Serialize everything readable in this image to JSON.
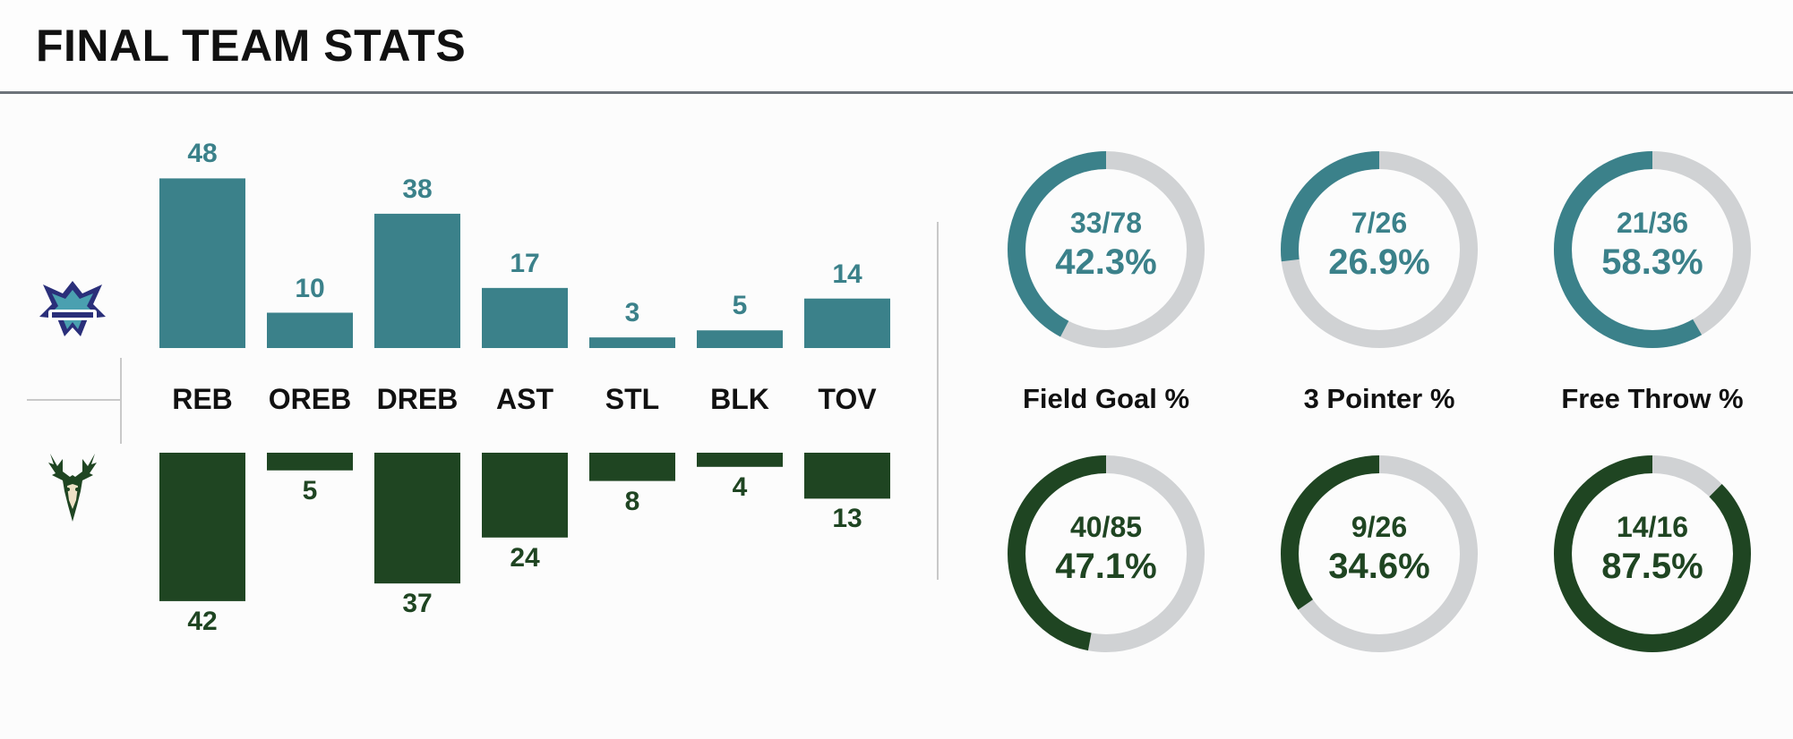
{
  "header": {
    "title": "FINAL TEAM STATS"
  },
  "teams": {
    "top": {
      "logo_icon": "charlotte-hornets-logo-icon",
      "color": "#3b818a"
    },
    "bottom": {
      "logo_icon": "milwaukee-bucks-logo-icon",
      "color": "#1f4522"
    }
  },
  "chart_data": [
    {
      "type": "bar",
      "categories": [
        "REB",
        "OREB",
        "DREB",
        "AST",
        "STL",
        "BLK",
        "TOV"
      ],
      "series": [
        {
          "values": [
            48,
            10,
            38,
            17,
            3,
            5,
            14
          ],
          "color": "#3b818a"
        },
        {
          "values": [
            42,
            5,
            37,
            24,
            8,
            4,
            13
          ],
          "color": "#1f4522"
        }
      ],
      "layout": "mirrored-vertical"
    },
    {
      "type": "pie",
      "charts": [
        {
          "label": "Field Goal %",
          "top": {
            "made": 33,
            "att": 78,
            "frac": "33/78",
            "pct": "42.3%"
          },
          "bottom": {
            "made": 40,
            "att": 85,
            "frac": "40/85",
            "pct": "47.1%"
          }
        },
        {
          "label": "3 Pointer %",
          "top": {
            "made": 7,
            "att": 26,
            "frac": "7/26",
            "pct": "26.9%"
          },
          "bottom": {
            "made": 9,
            "att": 26,
            "frac": "9/26",
            "pct": "34.6%"
          }
        },
        {
          "label": "Free Throw %",
          "top": {
            "made": 21,
            "att": 36,
            "frac": "21/36",
            "pct": "58.3%"
          },
          "bottom": {
            "made": 14,
            "att": 16,
            "frac": "14/16",
            "pct": "87.5%"
          }
        }
      ],
      "track_color": "#d0d2d4"
    }
  ]
}
